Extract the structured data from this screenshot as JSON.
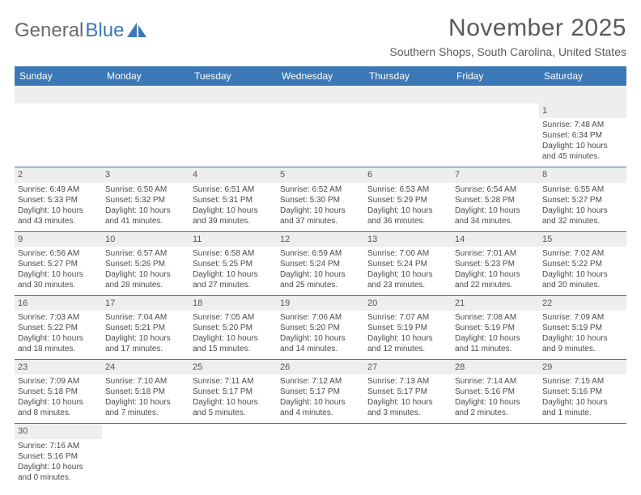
{
  "logo": {
    "text1": "General",
    "text2": "Blue",
    "sail_color": "#3b78b5"
  },
  "title": "November 2025",
  "location": "Southern Shops, South Carolina, United States",
  "colors": {
    "header_bg": "#3b78b5",
    "header_text": "#ffffff",
    "daynum_bg": "#eeeeee",
    "cell_border": "#3b78b5",
    "body_text": "#4a4a4a"
  },
  "day_headers": [
    "Sunday",
    "Monday",
    "Tuesday",
    "Wednesday",
    "Thursday",
    "Friday",
    "Saturday"
  ],
  "weeks": [
    [
      null,
      null,
      null,
      null,
      null,
      null,
      {
        "d": "1",
        "sr": "Sunrise: 7:48 AM",
        "ss": "Sunset: 6:34 PM",
        "dl1": "Daylight: 10 hours",
        "dl2": "and 45 minutes."
      }
    ],
    [
      {
        "d": "2",
        "sr": "Sunrise: 6:49 AM",
        "ss": "Sunset: 5:33 PM",
        "dl1": "Daylight: 10 hours",
        "dl2": "and 43 minutes."
      },
      {
        "d": "3",
        "sr": "Sunrise: 6:50 AM",
        "ss": "Sunset: 5:32 PM",
        "dl1": "Daylight: 10 hours",
        "dl2": "and 41 minutes."
      },
      {
        "d": "4",
        "sr": "Sunrise: 6:51 AM",
        "ss": "Sunset: 5:31 PM",
        "dl1": "Daylight: 10 hours",
        "dl2": "and 39 minutes."
      },
      {
        "d": "5",
        "sr": "Sunrise: 6:52 AM",
        "ss": "Sunset: 5:30 PM",
        "dl1": "Daylight: 10 hours",
        "dl2": "and 37 minutes."
      },
      {
        "d": "6",
        "sr": "Sunrise: 6:53 AM",
        "ss": "Sunset: 5:29 PM",
        "dl1": "Daylight: 10 hours",
        "dl2": "and 36 minutes."
      },
      {
        "d": "7",
        "sr": "Sunrise: 6:54 AM",
        "ss": "Sunset: 5:28 PM",
        "dl1": "Daylight: 10 hours",
        "dl2": "and 34 minutes."
      },
      {
        "d": "8",
        "sr": "Sunrise: 6:55 AM",
        "ss": "Sunset: 5:27 PM",
        "dl1": "Daylight: 10 hours",
        "dl2": "and 32 minutes."
      }
    ],
    [
      {
        "d": "9",
        "sr": "Sunrise: 6:56 AM",
        "ss": "Sunset: 5:27 PM",
        "dl1": "Daylight: 10 hours",
        "dl2": "and 30 minutes."
      },
      {
        "d": "10",
        "sr": "Sunrise: 6:57 AM",
        "ss": "Sunset: 5:26 PM",
        "dl1": "Daylight: 10 hours",
        "dl2": "and 28 minutes."
      },
      {
        "d": "11",
        "sr": "Sunrise: 6:58 AM",
        "ss": "Sunset: 5:25 PM",
        "dl1": "Daylight: 10 hours",
        "dl2": "and 27 minutes."
      },
      {
        "d": "12",
        "sr": "Sunrise: 6:59 AM",
        "ss": "Sunset: 5:24 PM",
        "dl1": "Daylight: 10 hours",
        "dl2": "and 25 minutes."
      },
      {
        "d": "13",
        "sr": "Sunrise: 7:00 AM",
        "ss": "Sunset: 5:24 PM",
        "dl1": "Daylight: 10 hours",
        "dl2": "and 23 minutes."
      },
      {
        "d": "14",
        "sr": "Sunrise: 7:01 AM",
        "ss": "Sunset: 5:23 PM",
        "dl1": "Daylight: 10 hours",
        "dl2": "and 22 minutes."
      },
      {
        "d": "15",
        "sr": "Sunrise: 7:02 AM",
        "ss": "Sunset: 5:22 PM",
        "dl1": "Daylight: 10 hours",
        "dl2": "and 20 minutes."
      }
    ],
    [
      {
        "d": "16",
        "sr": "Sunrise: 7:03 AM",
        "ss": "Sunset: 5:22 PM",
        "dl1": "Daylight: 10 hours",
        "dl2": "and 18 minutes."
      },
      {
        "d": "17",
        "sr": "Sunrise: 7:04 AM",
        "ss": "Sunset: 5:21 PM",
        "dl1": "Daylight: 10 hours",
        "dl2": "and 17 minutes."
      },
      {
        "d": "18",
        "sr": "Sunrise: 7:05 AM",
        "ss": "Sunset: 5:20 PM",
        "dl1": "Daylight: 10 hours",
        "dl2": "and 15 minutes."
      },
      {
        "d": "19",
        "sr": "Sunrise: 7:06 AM",
        "ss": "Sunset: 5:20 PM",
        "dl1": "Daylight: 10 hours",
        "dl2": "and 14 minutes."
      },
      {
        "d": "20",
        "sr": "Sunrise: 7:07 AM",
        "ss": "Sunset: 5:19 PM",
        "dl1": "Daylight: 10 hours",
        "dl2": "and 12 minutes."
      },
      {
        "d": "21",
        "sr": "Sunrise: 7:08 AM",
        "ss": "Sunset: 5:19 PM",
        "dl1": "Daylight: 10 hours",
        "dl2": "and 11 minutes."
      },
      {
        "d": "22",
        "sr": "Sunrise: 7:09 AM",
        "ss": "Sunset: 5:19 PM",
        "dl1": "Daylight: 10 hours",
        "dl2": "and 9 minutes."
      }
    ],
    [
      {
        "d": "23",
        "sr": "Sunrise: 7:09 AM",
        "ss": "Sunset: 5:18 PM",
        "dl1": "Daylight: 10 hours",
        "dl2": "and 8 minutes."
      },
      {
        "d": "24",
        "sr": "Sunrise: 7:10 AM",
        "ss": "Sunset: 5:18 PM",
        "dl1": "Daylight: 10 hours",
        "dl2": "and 7 minutes."
      },
      {
        "d": "25",
        "sr": "Sunrise: 7:11 AM",
        "ss": "Sunset: 5:17 PM",
        "dl1": "Daylight: 10 hours",
        "dl2": "and 5 minutes."
      },
      {
        "d": "26",
        "sr": "Sunrise: 7:12 AM",
        "ss": "Sunset: 5:17 PM",
        "dl1": "Daylight: 10 hours",
        "dl2": "and 4 minutes."
      },
      {
        "d": "27",
        "sr": "Sunrise: 7:13 AM",
        "ss": "Sunset: 5:17 PM",
        "dl1": "Daylight: 10 hours",
        "dl2": "and 3 minutes."
      },
      {
        "d": "28",
        "sr": "Sunrise: 7:14 AM",
        "ss": "Sunset: 5:16 PM",
        "dl1": "Daylight: 10 hours",
        "dl2": "and 2 minutes."
      },
      {
        "d": "29",
        "sr": "Sunrise: 7:15 AM",
        "ss": "Sunset: 5:16 PM",
        "dl1": "Daylight: 10 hours",
        "dl2": "and 1 minute."
      }
    ],
    [
      {
        "d": "30",
        "sr": "Sunrise: 7:16 AM",
        "ss": "Sunset: 5:16 PM",
        "dl1": "Daylight: 10 hours",
        "dl2": "and 0 minutes."
      },
      null,
      null,
      null,
      null,
      null,
      null
    ]
  ]
}
